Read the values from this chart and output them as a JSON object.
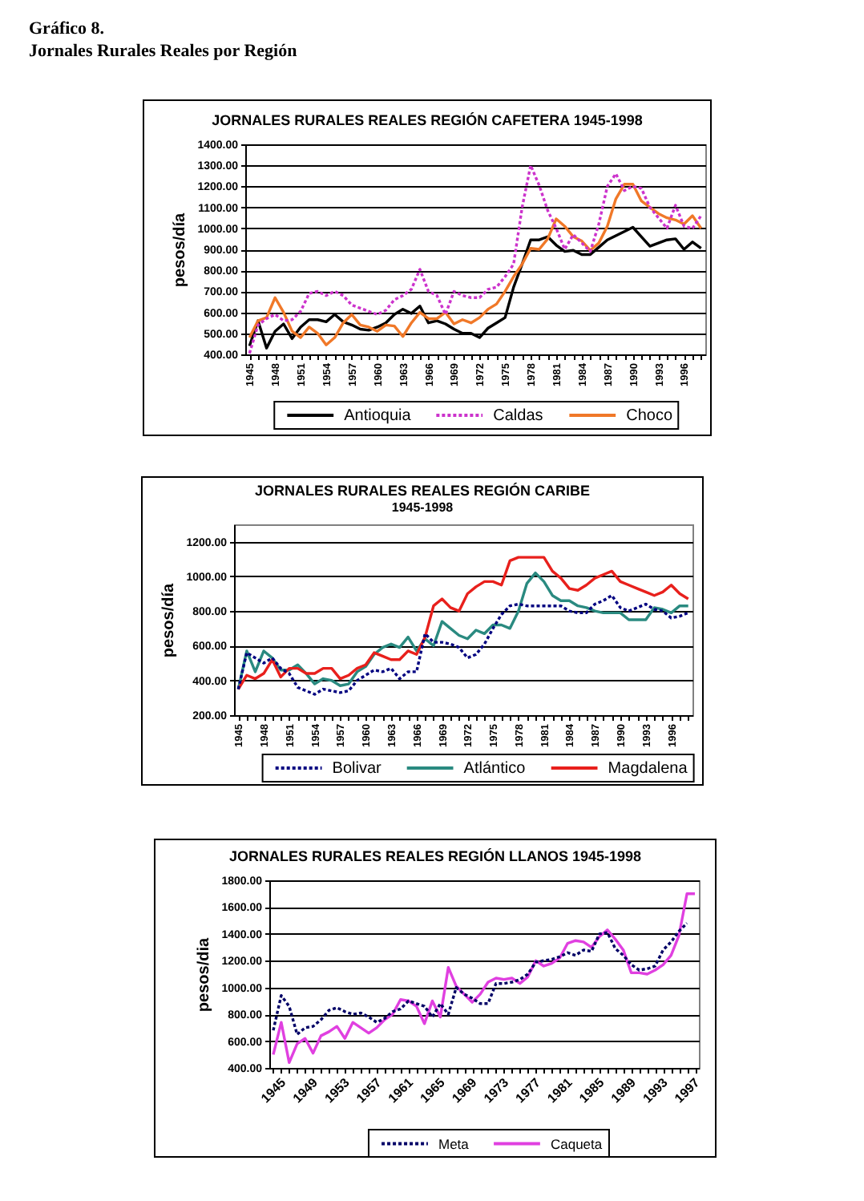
{
  "chart_data": [
    {
      "type": "other",
      "title": "Gráfico 8.",
      "subtitle": "Jornales Rurales Reales por Región"
    },
    {
      "type": "line",
      "title": "JORNALES RURALES REALES REGIÓN CAFETERA  1945-1998",
      "ylabel": "pesos/día",
      "categories": [
        "1945",
        null,
        null,
        "1948",
        null,
        null,
        "1951",
        null,
        null,
        "1954",
        null,
        null,
        "1957",
        null,
        null,
        "1960",
        null,
        null,
        "1963",
        null,
        null,
        "1966",
        null,
        null,
        "1969",
        null,
        null,
        "1972",
        null,
        null,
        "1975",
        null,
        null,
        "1978",
        null,
        null,
        "1981",
        null,
        null,
        "1984",
        null,
        null,
        "1987",
        null,
        null,
        "1990",
        null,
        null,
        "1993",
        null,
        null,
        "1996",
        null,
        null
      ],
      "series": [
        {
          "name": "Antioquia",
          "color": "#000000",
          "line_style": "solid",
          "values": [
            440,
            560,
            430,
            510,
            545,
            475,
            530,
            565,
            565,
            555,
            590,
            555,
            540,
            520,
            515,
            530,
            550,
            590,
            615,
            595,
            630,
            550,
            560,
            545,
            520,
            500,
            500,
            480,
            525,
            550,
            575,
            720,
            830,
            945,
            945,
            960,
            920,
            890,
            895,
            875,
            875,
            910,
            945,
            965,
            985,
            1005,
            960,
            915,
            930,
            945,
            950,
            900,
            935,
            905
          ]
        },
        {
          "name": "Caldas",
          "color": "#cc33cc",
          "line_style": "dotted",
          "values": [
            405,
            540,
            570,
            590,
            560,
            565,
            605,
            690,
            700,
            680,
            700,
            680,
            635,
            620,
            605,
            590,
            610,
            660,
            680,
            710,
            805,
            700,
            680,
            590,
            700,
            680,
            670,
            670,
            710,
            720,
            770,
            830,
            1100,
            1300,
            1205,
            1085,
            1000,
            900,
            970,
            930,
            890,
            1020,
            1200,
            1260,
            1180,
            1200,
            1190,
            1100,
            1050,
            1000,
            1110,
            1010,
            1000,
            1060
          ]
        },
        {
          "name": "Choco",
          "color": "#f07828",
          "line_style": "solid",
          "values": [
            480,
            560,
            575,
            670,
            600,
            510,
            480,
            530,
            500,
            445,
            480,
            550,
            590,
            540,
            530,
            510,
            540,
            535,
            485,
            550,
            600,
            570,
            570,
            600,
            545,
            565,
            550,
            575,
            615,
            640,
            700,
            770,
            830,
            905,
            900,
            950,
            1045,
            1010,
            960,
            940,
            895,
            930,
            1010,
            1140,
            1210,
            1210,
            1130,
            1100,
            1070,
            1050,
            1040,
            1020,
            1060,
            1000
          ]
        }
      ],
      "ylim": [
        400,
        1400
      ],
      "yticks": [
        {
          "value": 400,
          "label": "400.00"
        },
        {
          "value": 500,
          "label": "500.00"
        },
        {
          "value": 600,
          "label": "600.00"
        },
        {
          "value": 700,
          "label": "700.00"
        },
        {
          "value": 800,
          "label": "800.00"
        },
        {
          "value": 900,
          "label": "900.00"
        },
        {
          "value": 1000,
          "label": "1000.00"
        },
        {
          "value": 1100,
          "label": "1100.00"
        },
        {
          "value": 1200,
          "label": "1200.00"
        },
        {
          "value": 1300,
          "label": "1300.00"
        },
        {
          "value": 1400,
          "label": "1400.00"
        }
      ],
      "grid": "y",
      "legend": "bottom"
    },
    {
      "type": "line",
      "title": "JORNALES RURALES REALES REGIÓN  CARIBE",
      "subtitle": "1945-1998",
      "ylabel": "pesos/día",
      "categories": [
        "1945",
        null,
        null,
        "1948",
        null,
        null,
        "1951",
        null,
        null,
        "1954",
        null,
        null,
        "1957",
        null,
        null,
        "1960",
        null,
        null,
        "1963",
        null,
        null,
        "1966",
        null,
        null,
        "1969",
        null,
        null,
        "1972",
        null,
        null,
        "1975",
        null,
        null,
        "1978",
        null,
        null,
        "1981",
        null,
        null,
        "1984",
        null,
        null,
        "1987",
        null,
        null,
        "1990",
        null,
        null,
        "1993",
        null,
        null,
        "1996",
        null,
        null
      ],
      "series": [
        {
          "name": "Bolivar",
          "color": "#000080",
          "line_style": "dotted",
          "values": [
            350,
            560,
            530,
            500,
            530,
            470,
            440,
            360,
            340,
            320,
            350,
            340,
            330,
            340,
            400,
            430,
            460,
            450,
            470,
            410,
            450,
            450,
            670,
            620,
            620,
            610,
            590,
            530,
            550,
            610,
            700,
            780,
            830,
            840,
            830,
            830,
            830,
            830,
            830,
            800,
            790,
            790,
            840,
            860,
            890,
            820,
            800,
            820,
            840,
            810,
            800,
            760,
            770,
            790
          ]
        },
        {
          "name": "Atlántico",
          "color": "#2a8a80",
          "line_style": "solid",
          "values": [
            350,
            570,
            450,
            570,
            530,
            460,
            460,
            490,
            440,
            380,
            410,
            400,
            370,
            380,
            450,
            480,
            550,
            590,
            610,
            590,
            650,
            570,
            640,
            600,
            740,
            700,
            660,
            640,
            690,
            670,
            720,
            720,
            700,
            800,
            960,
            1020,
            970,
            890,
            860,
            860,
            830,
            820,
            800,
            790,
            790,
            790,
            750,
            750,
            750,
            820,
            810,
            790,
            830,
            830
          ]
        },
        {
          "name": "Magdalena",
          "color": "#e8201c",
          "line_style": "solid",
          "values": [
            350,
            430,
            410,
            440,
            520,
            420,
            470,
            470,
            440,
            440,
            470,
            470,
            410,
            430,
            470,
            490,
            560,
            540,
            520,
            520,
            570,
            550,
            650,
            830,
            870,
            820,
            800,
            900,
            940,
            970,
            970,
            950,
            1090,
            1110,
            1110,
            1110,
            1110,
            1030,
            990,
            930,
            920,
            950,
            990,
            1010,
            1030,
            970,
            950,
            930,
            910,
            890,
            910,
            950,
            900,
            870
          ]
        }
      ],
      "ylim": [
        200,
        1300
      ],
      "yticks": [
        {
          "value": 200,
          "label": "200.00"
        },
        {
          "value": 400,
          "label": "400.00"
        },
        {
          "value": 600,
          "label": "600.00"
        },
        {
          "value": 800,
          "label": "800.00"
        },
        {
          "value": 1000,
          "label": "1000.00"
        },
        {
          "value": 1200,
          "label": "1200.00"
        }
      ],
      "grid": "y",
      "legend": "bottom"
    },
    {
      "type": "line",
      "title": "JORNALES RURALES REALES REGIÓN LLANOS 1945-1998",
      "ylabel": "pesos/dia",
      "categories": [
        "1945",
        null,
        null,
        null,
        "1949",
        null,
        null,
        null,
        "1953",
        null,
        null,
        null,
        "1957",
        null,
        null,
        null,
        "1961",
        null,
        null,
        null,
        "1965",
        null,
        null,
        null,
        "1969",
        null,
        null,
        null,
        "1973",
        null,
        null,
        null,
        "1977",
        null,
        null,
        null,
        "1981",
        null,
        null,
        null,
        "1985",
        null,
        null,
        null,
        "1989",
        null,
        null,
        null,
        "1993",
        null,
        null,
        null,
        "1997",
        null
      ],
      "series": [
        {
          "name": "Meta",
          "color": "#000066",
          "line_style": "dotted",
          "values": [
            680,
            940,
            860,
            650,
            700,
            710,
            760,
            830,
            850,
            820,
            800,
            810,
            780,
            740,
            770,
            820,
            840,
            900,
            880,
            860,
            780,
            880,
            800,
            1000,
            950,
            920,
            880,
            880,
            1030,
            1030,
            1040,
            1060,
            1100,
            1190,
            1200,
            1210,
            1230,
            1260,
            1240,
            1280,
            1270,
            1400,
            1410,
            1290,
            1240,
            1170,
            1130,
            1140,
            1160,
            1280,
            1340,
            1420,
            1480,
            null
          ]
        },
        {
          "name": "Caqueta",
          "color": "#e040e0",
          "line_style": "solid",
          "values": [
            500,
            740,
            440,
            580,
            620,
            510,
            640,
            670,
            710,
            620,
            740,
            700,
            660,
            700,
            760,
            800,
            910,
            900,
            860,
            730,
            900,
            780,
            1150,
            1010,
            950,
            890,
            950,
            1040,
            1070,
            1060,
            1070,
            1030,
            1080,
            1200,
            1160,
            1180,
            1220,
            1330,
            1350,
            1340,
            1300,
            1380,
            1430,
            1360,
            1280,
            1110,
            1110,
            1100,
            1130,
            1170,
            1240,
            1390,
            1700,
            1700
          ]
        }
      ],
      "ylim": [
        400,
        1800
      ],
      "yticks": [
        {
          "value": 400,
          "label": "400.00"
        },
        {
          "value": 600,
          "label": "600.00"
        },
        {
          "value": 800,
          "label": "800.00"
        },
        {
          "value": 1000,
          "label": "1000.00"
        },
        {
          "value": 1200,
          "label": "1200.00"
        },
        {
          "value": 1400,
          "label": "1400.00"
        },
        {
          "value": 1600,
          "label": "1600.00"
        },
        {
          "value": 1800,
          "label": "1800.00"
        }
      ],
      "grid": "y",
      "legend": "bottom"
    }
  ]
}
